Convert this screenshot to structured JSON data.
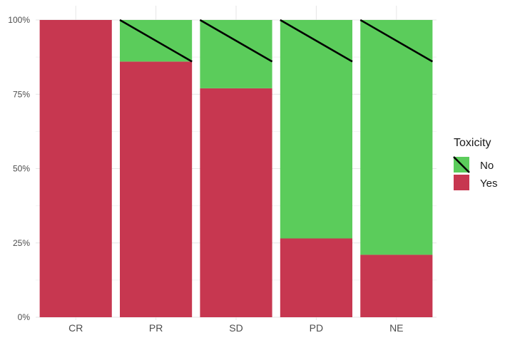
{
  "chart_data": {
    "type": "bar",
    "stacked": true,
    "normalized": true,
    "categories": [
      "CR",
      "PR",
      "SD",
      "PD",
      "NE"
    ],
    "series": [
      {
        "name": "Yes",
        "values": [
          100,
          86,
          77,
          26.5,
          21
        ],
        "color": "#c73750"
      },
      {
        "name": "No",
        "values": [
          0,
          14,
          23,
          73.5,
          79
        ],
        "color": "#5bcc5b"
      }
    ],
    "y_ticks": [
      "0%",
      "25%",
      "50%",
      "75%",
      "100%"
    ],
    "ylim": [
      0,
      100
    ],
    "grid": true,
    "legend": {
      "title": "Toxicity",
      "position": "right",
      "entries": [
        "No",
        "Yes"
      ]
    }
  }
}
